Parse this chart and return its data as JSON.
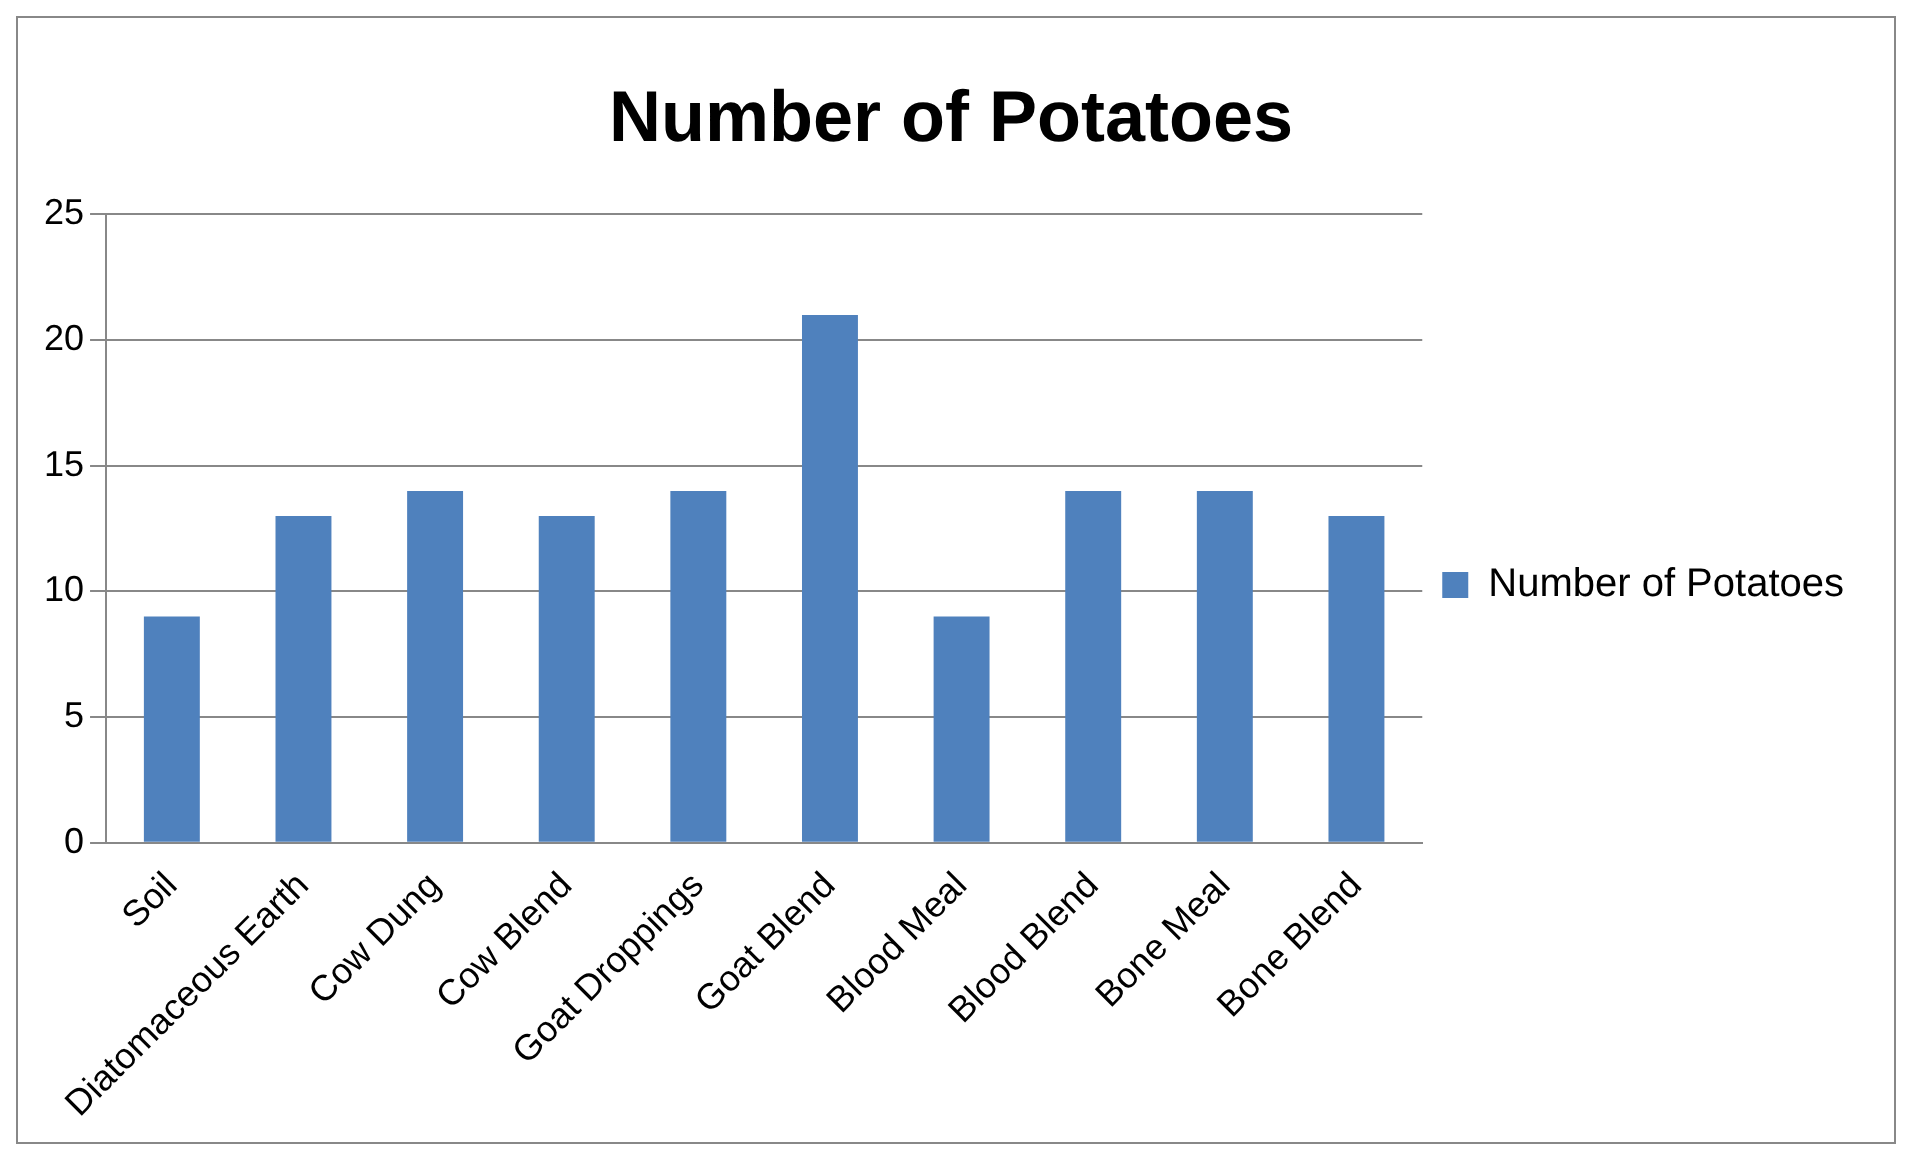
{
  "chart_data": {
    "type": "bar",
    "title": "Number of Potatoes",
    "categories": [
      "Soil",
      "Diatomaceous Earth",
      "Cow Dung",
      "Cow Blend",
      "Goat Droppings",
      "Goat Blend",
      "Blood Meal",
      "Blood Blend",
      "Bone Meal",
      "Bone Blend"
    ],
    "series": [
      {
        "name": "Number of Potatoes",
        "color": "#4f81bd",
        "values": [
          9,
          13,
          14,
          13,
          14,
          21,
          9,
          14,
          14,
          13
        ]
      }
    ],
    "ylim": [
      0,
      25
    ],
    "yticks": [
      0,
      5,
      10,
      15,
      20,
      25
    ],
    "grid": "y",
    "legend": "right"
  }
}
